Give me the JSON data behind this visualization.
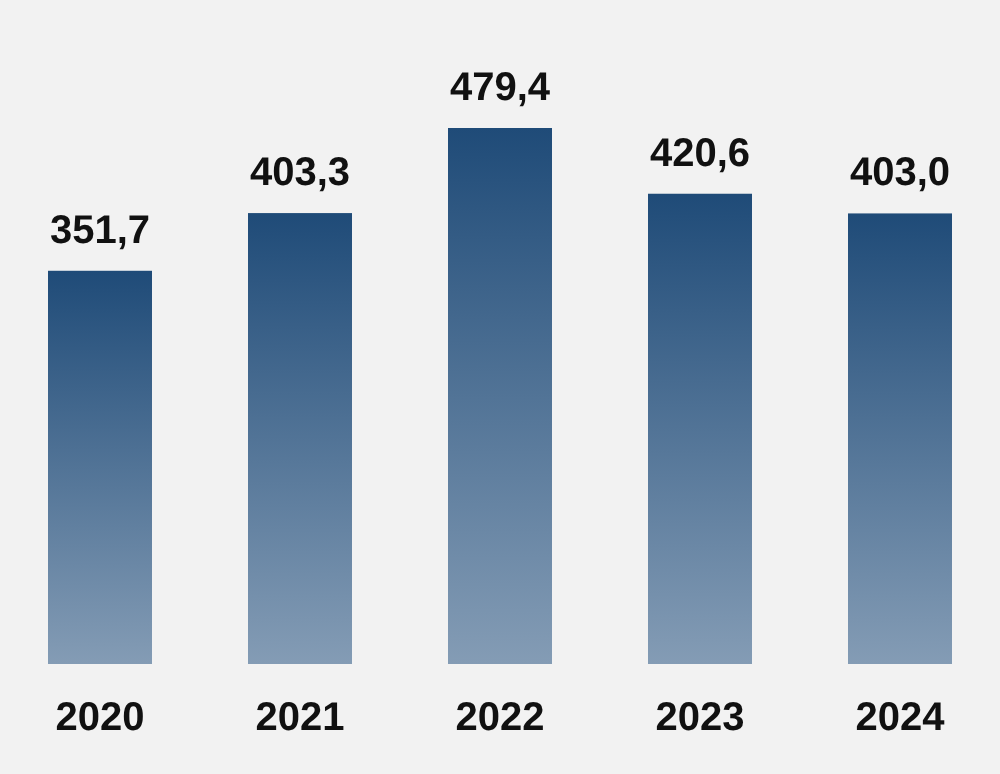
{
  "chart_data": {
    "type": "bar",
    "categories": [
      "2020",
      "2021",
      "2022",
      "2023",
      "2024"
    ],
    "values": [
      351.7,
      403.3,
      479.4,
      420.6,
      403.0
    ],
    "value_labels": [
      "351,7",
      "403,3",
      "479,4",
      "420,6",
      "403,0"
    ],
    "color": "#1f4b78"
  }
}
